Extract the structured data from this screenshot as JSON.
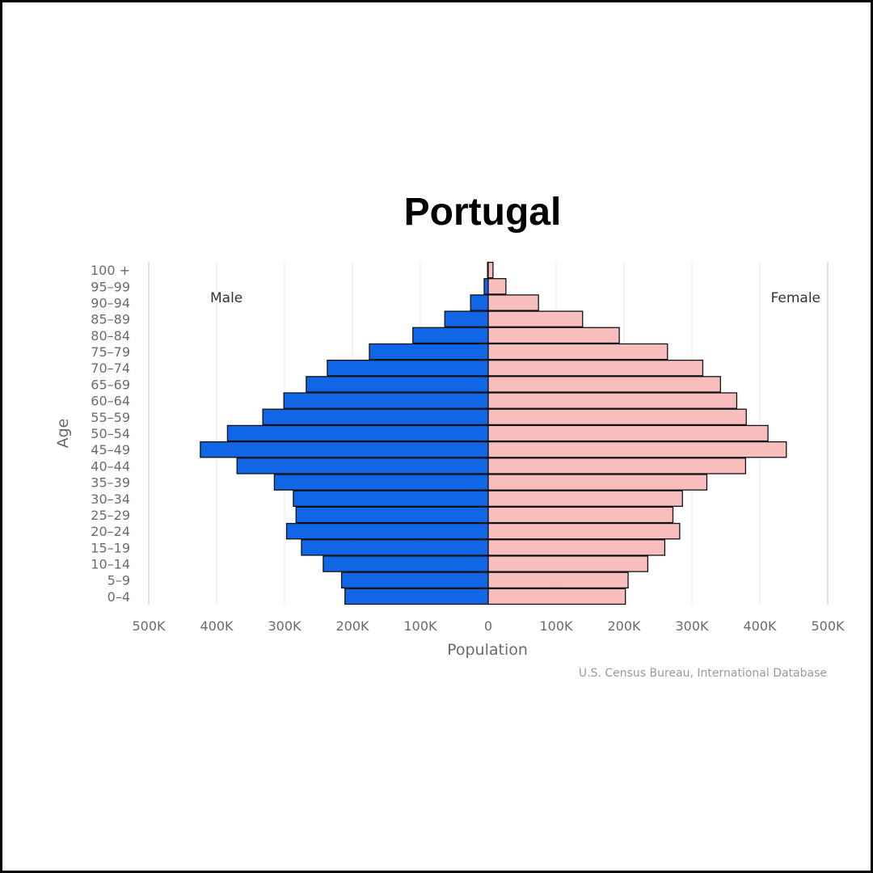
{
  "chart_data": {
    "type": "bar",
    "orientation": "horizontal",
    "title": "Portugal",
    "xlabel": "Population",
    "ylabel": "Age",
    "side_labels": {
      "left": "Male",
      "right": "Female"
    },
    "source": "U.S. Census Bureau, International Database",
    "xlim": [
      -500000,
      500000
    ],
    "x_ticks": [
      {
        "value": -500000,
        "label": "500K"
      },
      {
        "value": -400000,
        "label": "400K"
      },
      {
        "value": -300000,
        "label": "300K"
      },
      {
        "value": -200000,
        "label": "200K"
      },
      {
        "value": -100000,
        "label": "100K"
      },
      {
        "value": 0,
        "label": "0"
      },
      {
        "value": 100000,
        "label": "100K"
      },
      {
        "value": 200000,
        "label": "200K"
      },
      {
        "value": 300000,
        "label": "300K"
      },
      {
        "value": 400000,
        "label": "400K"
      },
      {
        "value": 500000,
        "label": "500K"
      }
    ],
    "grid": true,
    "categories": [
      "100 +",
      "95-99",
      "90-94",
      "85-89",
      "80-84",
      "75-79",
      "70-74",
      "65-69",
      "60-64",
      "55-59",
      "50-54",
      "45-49",
      "40-44",
      "35-39",
      "30-34",
      "25-29",
      "20-24",
      "15-19",
      "10-14",
      "5-9",
      "0-4"
    ],
    "series": [
      {
        "name": "Male",
        "color": "#1066e5",
        "values": [
          1000,
          6000,
          26000,
          64000,
          111000,
          175000,
          237000,
          268000,
          301000,
          332000,
          384000,
          424000,
          370000,
          315000,
          287000,
          283000,
          297000,
          275000,
          243000,
          216000,
          211000
        ]
      },
      {
        "name": "Female",
        "color": "#f8bebe",
        "values": [
          7000,
          26000,
          74000,
          139000,
          193000,
          264000,
          316000,
          342000,
          366000,
          380000,
          412000,
          439000,
          379000,
          322000,
          286000,
          272000,
          282000,
          260000,
          235000,
          206000,
          202000
        ]
      }
    ]
  }
}
